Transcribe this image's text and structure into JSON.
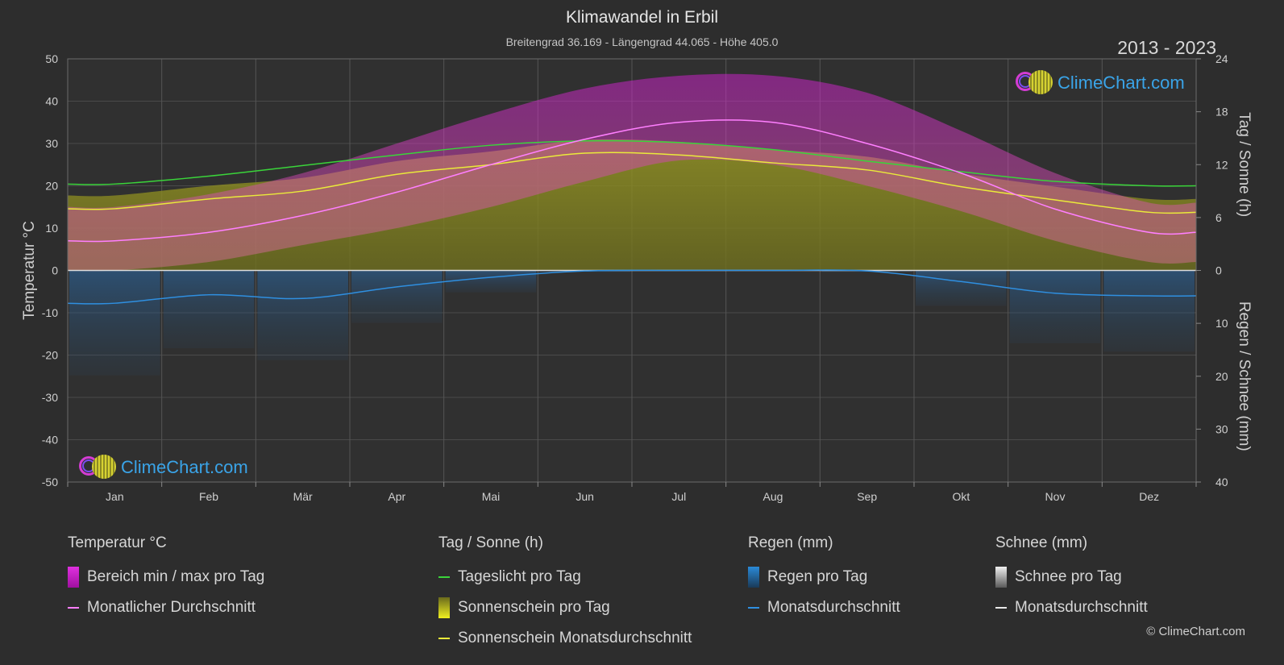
{
  "title": "Klimawandel in Erbil",
  "subtitle": "Breitengrad 36.169 - Längengrad 44.065 - Höhe 405.0",
  "year_range": "2013 - 2023",
  "brand": "ClimeChart.com",
  "copyright": "© ClimeChart.com",
  "colors": {
    "background": "#2d2d2d",
    "temp_range": "#d020d0",
    "temp_avg": "#ff7fff",
    "daylight": "#3ad43a",
    "sunshine_fill": "#9a9a22",
    "sunshine_avg": "#eaea3a",
    "rain": "#2a8ad8",
    "rain_avg": "#2f8fe0",
    "snow": "#d0d0d0"
  },
  "legend": {
    "temp": {
      "header": "Temperatur °C",
      "range": "Bereich min / max pro Tag",
      "avg": "Monatlicher Durchschnitt"
    },
    "sun": {
      "header": "Tag / Sonne (h)",
      "daylight": "Tageslicht pro Tag",
      "sunshine": "Sonnenschein pro Tag",
      "sunshine_avg": "Sonnenschein Monatsdurchschnitt"
    },
    "rain": {
      "header": "Regen (mm)",
      "per_day": "Regen pro Tag",
      "avg": "Monatsdurchschnitt"
    },
    "snow": {
      "header": "Schnee (mm)",
      "per_day": "Schnee pro Tag",
      "avg": "Monatsdurchschnitt"
    }
  },
  "chart_data": {
    "type": "line",
    "categories": [
      "Jan",
      "Feb",
      "Mär",
      "Apr",
      "Mai",
      "Jun",
      "Jul",
      "Aug",
      "Sep",
      "Okt",
      "Nov",
      "Dez"
    ],
    "y_left": {
      "label": "Temperatur °C",
      "range": [
        -50,
        50
      ],
      "ticks": [
        50,
        40,
        30,
        20,
        10,
        0,
        -10,
        -20,
        -30,
        -40,
        -50
      ]
    },
    "y_right_top": {
      "label": "Tag / Sonne (h)",
      "range": [
        0,
        24
      ],
      "ticks": [
        24,
        18,
        12,
        6,
        0
      ]
    },
    "y_right_bottom": {
      "label": "Regen / Schnee (mm)",
      "range": [
        0,
        40
      ],
      "ticks": [
        0,
        10,
        20,
        30,
        40
      ]
    },
    "grid": true,
    "series": [
      {
        "name": "Monatlicher Durchschnitt",
        "unit": "°C",
        "values": [
          7,
          9,
          13,
          18.5,
          25,
          31,
          35,
          35,
          30,
          23,
          14.5,
          9
        ]
      },
      {
        "name": "Bereich min / max pro Tag (max)",
        "unit": "°C",
        "values": [
          15,
          18,
          23,
          30,
          37,
          43,
          46,
          46,
          42,
          33,
          23,
          16
        ]
      },
      {
        "name": "Bereich min / max pro Tag (min)",
        "unit": "°C",
        "values": [
          0,
          2,
          6,
          10,
          15,
          21,
          26,
          25,
          20,
          14,
          7,
          2
        ]
      },
      {
        "name": "Tageslicht pro Tag",
        "unit": "h",
        "values": [
          9.8,
          10.7,
          11.9,
          13.1,
          14.2,
          14.7,
          14.5,
          13.7,
          12.4,
          11.2,
          10.1,
          9.6
        ]
      },
      {
        "name": "Sonnenschein Monatsdurchschnitt",
        "unit": "h",
        "values": [
          7,
          8.1,
          9,
          10.9,
          12,
          13.3,
          13.1,
          12.2,
          11.4,
          9.5,
          8,
          6.6
        ]
      },
      {
        "name": "Regen Monatsdurchschnitt",
        "unit": "mm",
        "values": [
          6.2,
          4.6,
          5.3,
          3.1,
          1.3,
          0.1,
          0,
          0,
          0.1,
          2.1,
          4.3,
          4.8
        ]
      }
    ]
  }
}
